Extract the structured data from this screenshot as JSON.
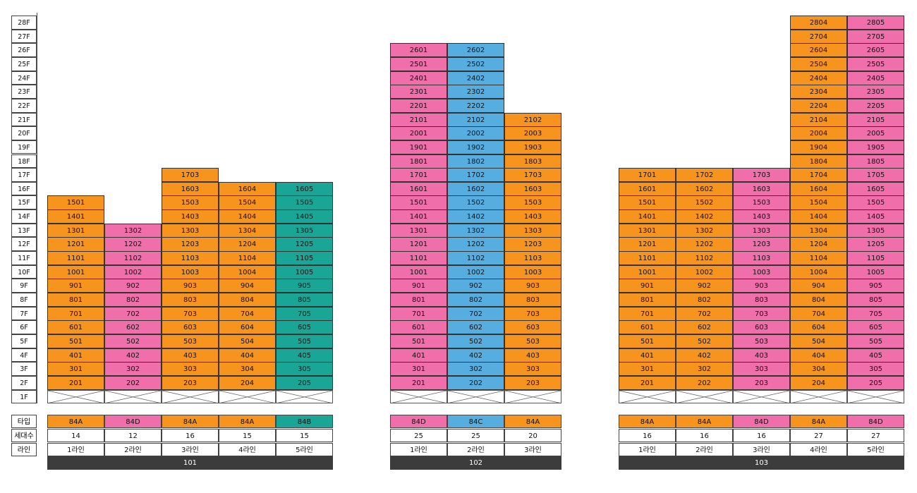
{
  "colors": {
    "A": "#f7941d",
    "C": "#56aee0",
    "D": "#f06eaa",
    "B": "#1aa696"
  },
  "floor_labels": [
    "28F",
    "27F",
    "26F",
    "25F",
    "24F",
    "23F",
    "22F",
    "21F",
    "20F",
    "19F",
    "18F",
    "17F",
    "16F",
    "15F",
    "14F",
    "13F",
    "12F",
    "11F",
    "10F",
    "9F",
    "8F",
    "7F",
    "6F",
    "5F",
    "4F",
    "3F",
    "2F",
    "1F"
  ],
  "row_labels": {
    "type": "타입",
    "households": "세대수",
    "line": "라인"
  },
  "buildings": [
    {
      "name": "101",
      "lines": [
        {
          "line": 1,
          "type": "84A",
          "cls": "A",
          "households": "14",
          "label": "1라인",
          "top": 15
        },
        {
          "line": 2,
          "type": "84D",
          "cls": "D",
          "households": "12",
          "label": "2라인",
          "top": 13
        },
        {
          "line": 3,
          "type": "84A",
          "cls": "A",
          "households": "16",
          "label": "3라인",
          "top": 17
        },
        {
          "line": 4,
          "type": "84A",
          "cls": "A",
          "households": "15",
          "label": "4라인",
          "top": 16
        },
        {
          "line": 5,
          "type": "84B",
          "cls": "B",
          "households": "15",
          "label": "5라인",
          "top": 16
        }
      ]
    },
    {
      "name": "102",
      "lines": [
        {
          "line": 1,
          "type": "84D",
          "cls": "D",
          "households": "25",
          "label": "1라인",
          "top": 26
        },
        {
          "line": 2,
          "type": "84C",
          "cls": "C",
          "households": "25",
          "label": "2라인",
          "top": 26
        },
        {
          "line": 3,
          "type": "84A",
          "cls": "A",
          "households": "20",
          "label": "3라인",
          "top": 21,
          "top_label": "2102"
        }
      ]
    },
    {
      "name": "103",
      "lines": [
        {
          "line": 1,
          "type": "84A",
          "cls": "A",
          "households": "16",
          "label": "1라인",
          "top": 17
        },
        {
          "line": 2,
          "type": "84A",
          "cls": "A",
          "households": "16",
          "label": "2라인",
          "top": 17
        },
        {
          "line": 3,
          "type": "84D",
          "cls": "D",
          "households": "16",
          "label": "3라인",
          "top": 17
        },
        {
          "line": 4,
          "type": "84A",
          "cls": "A",
          "households": "27",
          "label": "4라인",
          "top": 28
        },
        {
          "line": 5,
          "type": "84D",
          "cls": "D",
          "households": "27",
          "label": "5라인",
          "top": 28
        }
      ]
    }
  ]
}
